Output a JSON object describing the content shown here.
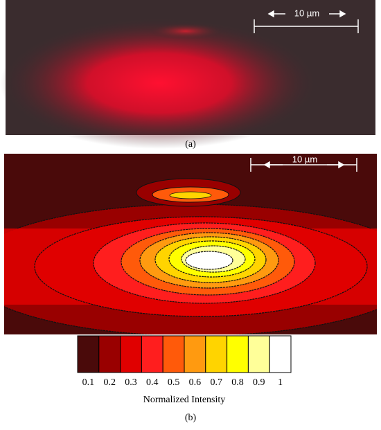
{
  "panel_a": {
    "label": "(a)",
    "scale_bar": "10 µm"
  },
  "panel_b": {
    "label": "(b)",
    "scale_bar": "10 µm"
  },
  "colorbar": {
    "title": "Normalized Intensity",
    "ticks": [
      0.1,
      0.2,
      0.3,
      0.4,
      0.5,
      0.6,
      0.7,
      0.8,
      0.9,
      1
    ],
    "colors": [
      "#4a0a0a",
      "#990000",
      "#e00000",
      "#ff1e1e",
      "#ff5a0a",
      "#ff9a10",
      "#ffd400",
      "#ffff00",
      "#ffff99",
      "#ffffff"
    ]
  }
}
